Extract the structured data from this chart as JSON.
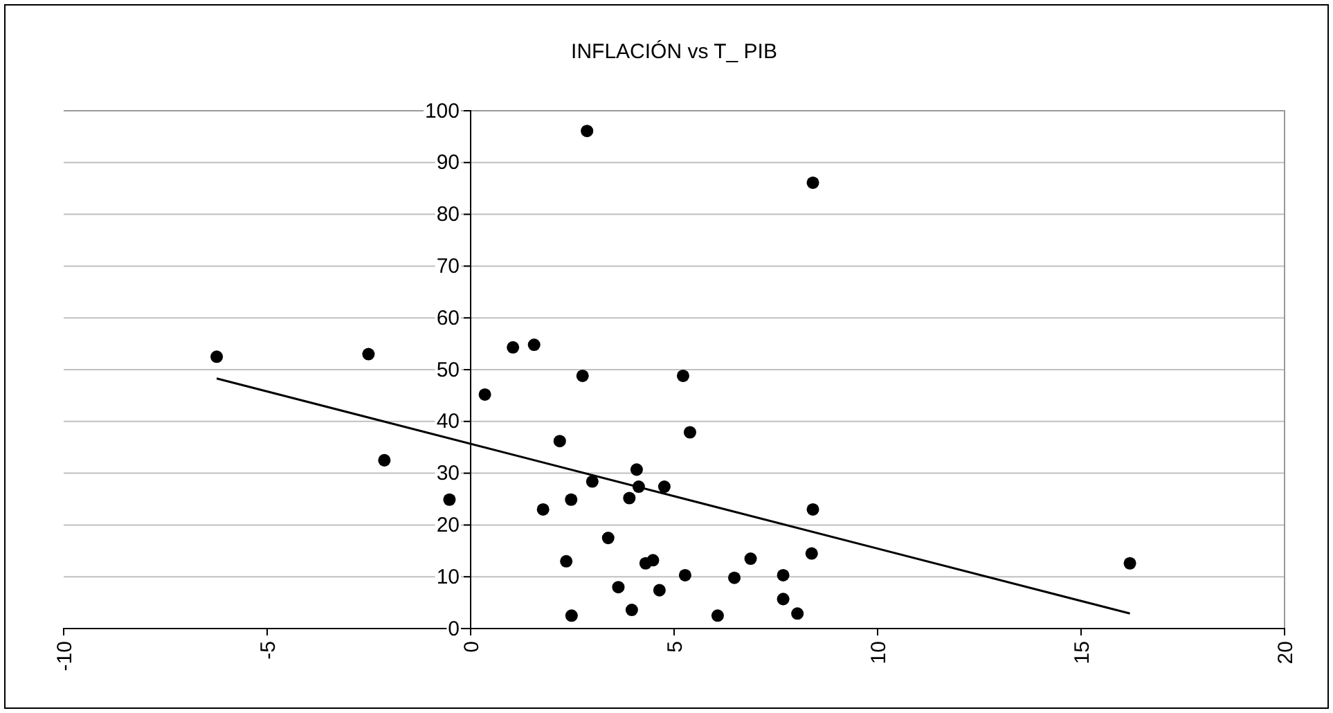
{
  "chart_data": {
    "type": "scatter",
    "title": "INFLACIÓN vs T_ PIB",
    "xlim": [
      -10,
      20
    ],
    "xticks": [
      -10,
      -5,
      0,
      5,
      10,
      15,
      20
    ],
    "ylim": [
      0,
      100
    ],
    "yticks": [
      0,
      10,
      20,
      30,
      40,
      50,
      60,
      70,
      80,
      90,
      100
    ],
    "grid": "y",
    "series": [
      {
        "color": "#000000",
        "marker": "circle",
        "x": [
          2.86,
          8.41,
          -2.51,
          -2.12,
          -0.52,
          0.35,
          1.04,
          1.56,
          2.75,
          2.19,
          1.78,
          2.47,
          2.35,
          2.48,
          2.99,
          3.38,
          3.63,
          3.96,
          3.9,
          4.08,
          4.13,
          4.3,
          4.48,
          4.64,
          4.76,
          5.22,
          5.39,
          5.27,
          6.07,
          6.48,
          6.88,
          7.68,
          7.68,
          8.03,
          8.38,
          8.41,
          -6.24,
          16.2
        ],
        "values": [
          96.1,
          86.1,
          53.0,
          32.5,
          24.9,
          45.2,
          54.3,
          54.8,
          48.8,
          36.2,
          23.0,
          24.9,
          13.0,
          2.5,
          28.4,
          17.5,
          8.0,
          3.6,
          25.2,
          30.7,
          27.4,
          12.6,
          13.2,
          7.4,
          27.4,
          48.8,
          37.9,
          10.3,
          2.5,
          9.8,
          13.5,
          10.3,
          5.7,
          2.9,
          14.5,
          23.0,
          52.5,
          12.6
        ]
      },
      {
        "type": "line",
        "color": "#000000",
        "marker": "none",
        "line_style": "solid",
        "x": [
          -6.24,
          16.2
        ],
        "values": [
          48.3,
          2.9
        ]
      }
    ]
  }
}
